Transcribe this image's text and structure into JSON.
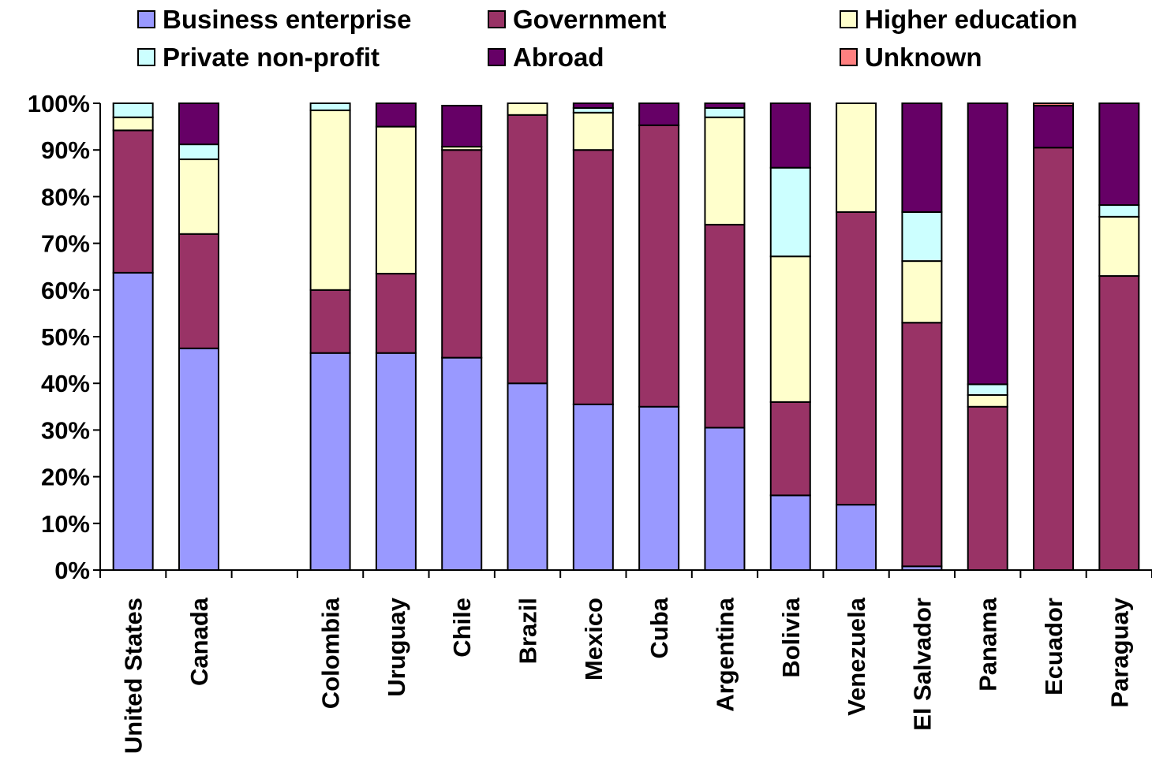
{
  "chart_data": {
    "type": "bar",
    "stacked": true,
    "percent_scale": true,
    "categories": [
      "United States",
      "Canada",
      "",
      "Colombia",
      "Uruguay",
      "Chile",
      "Brazil",
      "Mexico",
      "Cuba",
      "Argentina",
      "Bolivia",
      "Venezuela",
      "El Salvador",
      "Panama",
      "Ecuador",
      "Paraguay"
    ],
    "ylim": [
      0,
      100
    ],
    "yticks": [
      "0%",
      "10%",
      "20%",
      "30%",
      "40%",
      "50%",
      "60%",
      "70%",
      "80%",
      "90%",
      "100%"
    ],
    "legend_position": "top",
    "grid": false,
    "series": [
      {
        "name": "Business enterprise",
        "color": "#9999FF",
        "values": [
          63.7,
          47.5,
          null,
          46.5,
          46.5,
          45.5,
          40.0,
          35.5,
          35.0,
          30.5,
          16.0,
          14.0,
          0.8,
          0.0,
          0.0,
          0.0
        ]
      },
      {
        "name": "Government",
        "color": "#993366",
        "values": [
          30.5,
          24.5,
          null,
          13.5,
          17.0,
          44.5,
          57.5,
          54.5,
          60.3,
          43.5,
          20.0,
          62.7,
          52.2,
          35.0,
          90.5,
          63.0
        ]
      },
      {
        "name": "Higher education",
        "color": "#FFFFCC",
        "values": [
          2.8,
          16.0,
          null,
          38.5,
          31.5,
          0.7,
          2.5,
          8.0,
          0.0,
          23.0,
          31.2,
          23.3,
          13.2,
          2.5,
          0.0,
          12.7
        ]
      },
      {
        "name": "Private non-profit",
        "color": "#CCFFFF",
        "values": [
          3.0,
          3.2,
          null,
          1.5,
          0.0,
          0.0,
          0.0,
          1.0,
          0.0,
          2.0,
          19.0,
          0.0,
          10.5,
          2.3,
          0.0,
          2.5
        ]
      },
      {
        "name": "Abroad",
        "color": "#660066",
        "values": [
          0.0,
          8.8,
          null,
          0.0,
          5.0,
          8.8,
          0.0,
          1.0,
          4.7,
          1.0,
          13.8,
          0.0,
          23.3,
          60.2,
          9.0,
          21.8
        ]
      },
      {
        "name": "Unknown",
        "color": "#FF8080",
        "values": [
          0.0,
          0.0,
          null,
          0.0,
          0.0,
          0.0,
          0.0,
          0.0,
          0.0,
          0.0,
          0.0,
          0.0,
          0.0,
          0.0,
          0.5,
          0.0
        ]
      }
    ]
  }
}
